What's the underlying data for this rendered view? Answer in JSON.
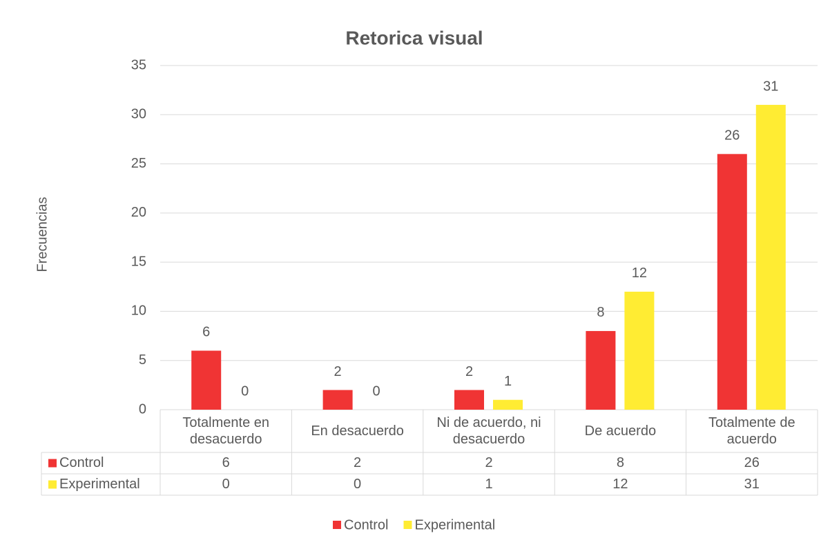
{
  "chart_data": {
    "type": "bar",
    "title": "Retorica visual",
    "y_label": "Frecuencias",
    "categories": [
      "Totalmente en desacuerdo",
      "En desacuerdo",
      "Ni de acuerdo, ni desacuerdo",
      "De acuerdo",
      "Totalmente de acuerdo"
    ],
    "series": [
      {
        "name": "Control",
        "color": "#f03434",
        "values": [
          6,
          2,
          2,
          8,
          26
        ]
      },
      {
        "name": "Experimental",
        "color": "#ffec33",
        "values": [
          0,
          0,
          1,
          12,
          31
        ]
      }
    ],
    "ylim": [
      0,
      35
    ],
    "yticks": [
      0,
      5,
      10,
      15,
      20,
      25,
      30,
      35
    ],
    "grid": true,
    "data_table": true,
    "legend": "bottom"
  }
}
